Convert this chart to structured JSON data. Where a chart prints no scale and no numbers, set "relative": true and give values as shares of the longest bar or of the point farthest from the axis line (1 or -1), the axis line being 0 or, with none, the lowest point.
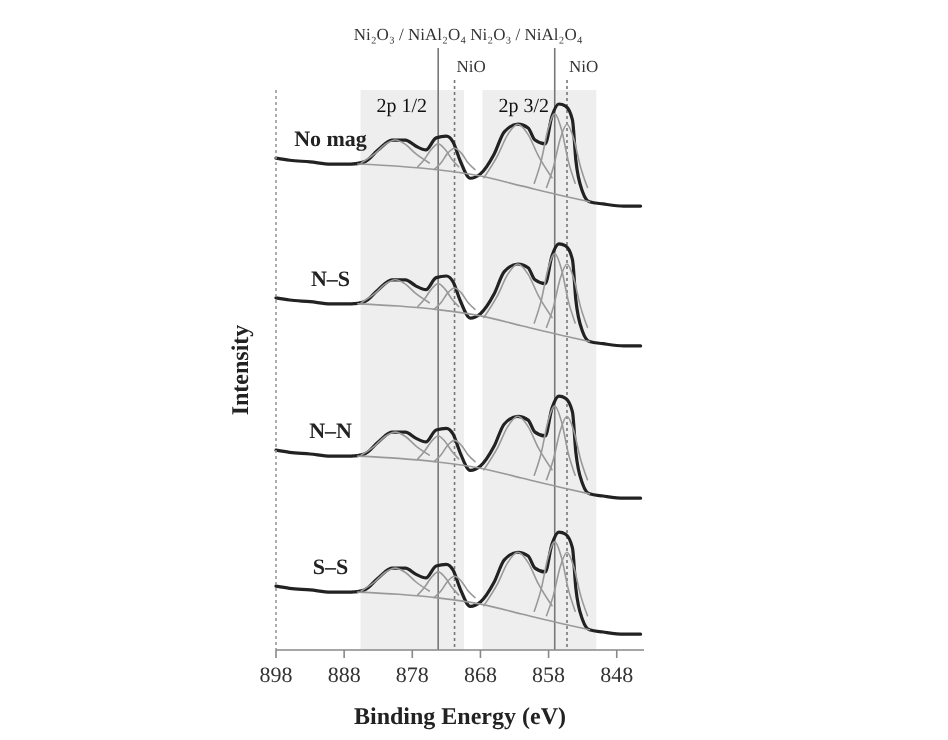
{
  "chart_data": {
    "type": "line",
    "relative": true,
    "xlabel": "Binding Energy (eV)",
    "ylabel": "Intensity",
    "xlim": [
      898,
      844
    ],
    "xticks": [
      898,
      888,
      878,
      868,
      858,
      848
    ],
    "bands": [
      {
        "axis": "x",
        "from": 885.6,
        "to": 870.4,
        "label": "2p 1/2",
        "color": "#eeeeee"
      },
      {
        "axis": "x",
        "from": 867.7,
        "to": 851,
        "label": "2p 3/2",
        "color": "#eeeeee"
      }
    ],
    "ref_lines": [
      {
        "axis": "x",
        "value": 874.2,
        "label": "Ni₂O₃ / NiAl₂O₄",
        "line_style": "solid",
        "color": "#777777"
      },
      {
        "axis": "x",
        "value": 871.8,
        "label": "NiO",
        "line_style": "dotted",
        "color": "#777777"
      },
      {
        "axis": "x",
        "value": 857.1,
        "label": "Ni₂O₃ / NiAl₂O₄",
        "line_style": "solid",
        "color": "#777777"
      },
      {
        "axis": "x",
        "value": 855.3,
        "label": "NiO",
        "line_style": "dotted",
        "color": "#777777"
      }
    ],
    "series": [
      {
        "name": "No mag",
        "color": "#222222",
        "x": [
          898,
          896,
          893,
          890,
          887,
          885,
          883,
          881,
          879,
          877.5,
          876,
          874.5,
          873,
          872,
          871,
          869.5,
          868,
          866,
          864.5,
          862.5,
          861,
          860,
          858.5,
          857.5,
          856.5,
          855.5,
          854.5,
          854,
          853,
          852,
          850,
          847,
          844.5
        ],
        "values": [
          0.901,
          0.897,
          0.894,
          0.89,
          0.89,
          0.894,
          0.916,
          0.934,
          0.934,
          0.923,
          0.916,
          0.938,
          0.941,
          0.93,
          0.897,
          0.864,
          0.872,
          0.908,
          0.949,
          0.963,
          0.956,
          0.934,
          0.927,
          0.978,
          1.0,
          0.996,
          0.971,
          0.897,
          0.839,
          0.821,
          0.817,
          0.813,
          0.813
        ]
      },
      {
        "color": "#999999",
        "x": [
          886,
          880,
          874,
          868,
          862,
          856,
          852
        ],
        "values": [
          0.89,
          0.886,
          0.879,
          0.868,
          0.85,
          0.832,
          0.821
        ]
      },
      {
        "color": "#999999",
        "x": [
          885.5,
          883.5,
          882,
          880.5,
          879,
          877.5,
          875.5
        ],
        "values": [
          0.892,
          0.909,
          0.926,
          0.934,
          0.926,
          0.909,
          0.892
        ]
      },
      {
        "color": "#999999",
        "x": [
          877.2,
          876.2,
          875.2,
          874.2,
          873.2,
          872.2,
          871.2
        ],
        "values": [
          0.885,
          0.899,
          0.917,
          0.927,
          0.917,
          0.899,
          0.885
        ]
      },
      {
        "color": "#999999",
        "x": [
          874.8,
          873.8,
          872.8,
          871.8,
          870.8,
          869.8,
          868.8
        ],
        "values": [
          0.88,
          0.892,
          0.91,
          0.919,
          0.91,
          0.892,
          0.88
        ]
      },
      {
        "color": "#999999",
        "x": [
          867.5,
          865.5,
          864,
          862.5,
          861,
          859.5,
          857.5
        ],
        "values": [
          0.865,
          0.905,
          0.944,
          0.963,
          0.944,
          0.905,
          0.865
        ]
      },
      {
        "color": "#999999",
        "x": [
          860.1,
          859.1,
          858.1,
          857.1,
          856.1,
          855.1,
          854.1
        ],
        "values": [
          0.855,
          0.895,
          0.953,
          0.982,
          0.953,
          0.895,
          0.855
        ]
      },
      {
        "color": "#999999",
        "x": [
          858.3,
          857.3,
          856.3,
          855.3,
          854.3,
          853.3,
          852.3
        ],
        "values": [
          0.847,
          0.884,
          0.936,
          0.963,
          0.936,
          0.884,
          0.847
        ]
      },
      {
        "name": "N–S",
        "color": "#222222",
        "x": [
          898,
          896,
          893,
          890,
          887,
          885,
          883,
          881,
          879,
          877.5,
          876,
          874.5,
          873,
          872,
          871,
          869.5,
          868,
          866,
          864.5,
          862.5,
          861,
          860,
          858.5,
          857.5,
          856.5,
          855.5,
          854.5,
          854,
          853,
          852,
          850,
          847,
          844.5
        ],
        "values": [
          0.645,
          0.641,
          0.638,
          0.634,
          0.634,
          0.638,
          0.66,
          0.678,
          0.678,
          0.667,
          0.66,
          0.682,
          0.685,
          0.674,
          0.641,
          0.608,
          0.616,
          0.652,
          0.693,
          0.707,
          0.7,
          0.678,
          0.671,
          0.722,
          0.744,
          0.74,
          0.715,
          0.641,
          0.583,
          0.565,
          0.561,
          0.557,
          0.557
        ]
      },
      {
        "color": "#999999",
        "x": [
          886,
          880,
          874,
          868,
          862,
          856,
          852
        ],
        "values": [
          0.634,
          0.63,
          0.623,
          0.612,
          0.594,
          0.576,
          0.565
        ]
      },
      {
        "color": "#999999",
        "x": [
          885.5,
          883.5,
          882,
          880.5,
          879,
          877.5,
          875.5
        ],
        "values": [
          0.636,
          0.653,
          0.67,
          0.678,
          0.67,
          0.653,
          0.636
        ]
      },
      {
        "color": "#999999",
        "x": [
          877.2,
          876.2,
          875.2,
          874.2,
          873.2,
          872.2,
          871.2
        ],
        "values": [
          0.629,
          0.643,
          0.661,
          0.671,
          0.661,
          0.643,
          0.629
        ]
      },
      {
        "color": "#999999",
        "x": [
          874.8,
          873.8,
          872.8,
          871.8,
          870.8,
          869.8,
          868.8
        ],
        "values": [
          0.624,
          0.636,
          0.654,
          0.663,
          0.654,
          0.636,
          0.624
        ]
      },
      {
        "color": "#999999",
        "x": [
          867.5,
          865.5,
          864,
          862.5,
          861,
          859.5,
          857.5
        ],
        "values": [
          0.609,
          0.649,
          0.688,
          0.707,
          0.688,
          0.649,
          0.609
        ]
      },
      {
        "color": "#999999",
        "x": [
          860.1,
          859.1,
          858.1,
          857.1,
          856.1,
          855.1,
          854.1
        ],
        "values": [
          0.599,
          0.639,
          0.697,
          0.726,
          0.697,
          0.639,
          0.599
        ]
      },
      {
        "color": "#999999",
        "x": [
          858.3,
          857.3,
          856.3,
          855.3,
          854.3,
          853.3,
          852.3
        ],
        "values": [
          0.591,
          0.628,
          0.68,
          0.707,
          0.68,
          0.628,
          0.591
        ]
      },
      {
        "name": "N–N",
        "color": "#222222",
        "x": [
          898,
          896,
          893,
          890,
          887,
          885,
          883,
          881,
          879,
          877.5,
          876,
          874.5,
          873,
          872,
          871,
          869.5,
          868,
          866,
          864.5,
          862.5,
          861,
          860,
          858.5,
          857.5,
          856.5,
          855.5,
          854.5,
          854,
          853,
          852,
          850,
          847,
          844.5
        ],
        "values": [
          0.366,
          0.362,
          0.359,
          0.355,
          0.355,
          0.359,
          0.381,
          0.399,
          0.399,
          0.388,
          0.381,
          0.403,
          0.406,
          0.395,
          0.362,
          0.329,
          0.337,
          0.373,
          0.414,
          0.428,
          0.421,
          0.399,
          0.392,
          0.443,
          0.465,
          0.461,
          0.436,
          0.362,
          0.304,
          0.286,
          0.282,
          0.278,
          0.278
        ]
      },
      {
        "color": "#999999",
        "x": [
          886,
          880,
          874,
          868,
          862,
          856,
          852
        ],
        "values": [
          0.355,
          0.351,
          0.344,
          0.333,
          0.315,
          0.297,
          0.286
        ]
      },
      {
        "color": "#999999",
        "x": [
          885.5,
          883.5,
          882,
          880.5,
          879,
          877.5,
          875.5
        ],
        "values": [
          0.357,
          0.374,
          0.391,
          0.399,
          0.391,
          0.374,
          0.357
        ]
      },
      {
        "color": "#999999",
        "x": [
          877.2,
          876.2,
          875.2,
          874.2,
          873.2,
          872.2,
          871.2
        ],
        "values": [
          0.35,
          0.364,
          0.382,
          0.392,
          0.382,
          0.364,
          0.35
        ]
      },
      {
        "color": "#999999",
        "x": [
          874.8,
          873.8,
          872.8,
          871.8,
          870.8,
          869.8,
          868.8
        ],
        "values": [
          0.345,
          0.357,
          0.375,
          0.384,
          0.375,
          0.357,
          0.345
        ]
      },
      {
        "color": "#999999",
        "x": [
          867.5,
          865.5,
          864,
          862.5,
          861,
          859.5,
          857.5
        ],
        "values": [
          0.33,
          0.37,
          0.409,
          0.428,
          0.409,
          0.37,
          0.33
        ]
      },
      {
        "color": "#999999",
        "x": [
          860.1,
          859.1,
          858.1,
          857.1,
          856.1,
          855.1,
          854.1
        ],
        "values": [
          0.32,
          0.36,
          0.418,
          0.447,
          0.418,
          0.36,
          0.32
        ]
      },
      {
        "color": "#999999",
        "x": [
          858.3,
          857.3,
          856.3,
          855.3,
          854.3,
          853.3,
          852.3
        ],
        "values": [
          0.312,
          0.349,
          0.401,
          0.428,
          0.401,
          0.349,
          0.312
        ]
      },
      {
        "name": "S–S",
        "color": "#222222",
        "x": [
          898,
          896,
          893,
          890,
          887,
          885,
          883,
          881,
          879,
          877.5,
          876,
          874.5,
          873,
          872,
          871,
          869.5,
          868,
          866,
          864.5,
          862.5,
          861,
          860,
          858.5,
          857.5,
          856.5,
          855.5,
          854.5,
          854,
          853,
          852,
          850,
          847,
          844.5
        ],
        "values": [
          0.117,
          0.113,
          0.11,
          0.106,
          0.106,
          0.11,
          0.132,
          0.15,
          0.15,
          0.139,
          0.132,
          0.154,
          0.157,
          0.146,
          0.113,
          0.08,
          0.088,
          0.124,
          0.165,
          0.179,
          0.172,
          0.15,
          0.143,
          0.194,
          0.216,
          0.212,
          0.187,
          0.113,
          0.055,
          0.037,
          0.033,
          0.029,
          0.029
        ]
      },
      {
        "color": "#999999",
        "x": [
          886,
          880,
          874,
          868,
          862,
          856,
          852
        ],
        "values": [
          0.106,
          0.102,
          0.095,
          0.084,
          0.066,
          0.048,
          0.037
        ]
      },
      {
        "color": "#999999",
        "x": [
          885.5,
          883.5,
          882,
          880.5,
          879,
          877.5,
          875.5
        ],
        "values": [
          0.108,
          0.125,
          0.142,
          0.15,
          0.142,
          0.125,
          0.108
        ]
      },
      {
        "color": "#999999",
        "x": [
          877.2,
          876.2,
          875.2,
          874.2,
          873.2,
          872.2,
          871.2
        ],
        "values": [
          0.101,
          0.115,
          0.133,
          0.143,
          0.133,
          0.115,
          0.101
        ]
      },
      {
        "color": "#999999",
        "x": [
          874.8,
          873.8,
          872.8,
          871.8,
          870.8,
          869.8,
          868.8
        ],
        "values": [
          0.096,
          0.108,
          0.126,
          0.135,
          0.126,
          0.108,
          0.096
        ]
      },
      {
        "color": "#999999",
        "x": [
          867.5,
          865.5,
          864,
          862.5,
          861,
          859.5,
          857.5
        ],
        "values": [
          0.081,
          0.121,
          0.16,
          0.179,
          0.16,
          0.121,
          0.081
        ]
      },
      {
        "color": "#999999",
        "x": [
          860.1,
          859.1,
          858.1,
          857.1,
          856.1,
          855.1,
          854.1
        ],
        "values": [
          0.071,
          0.111,
          0.169,
          0.198,
          0.169,
          0.111,
          0.071
        ]
      },
      {
        "color": "#999999",
        "x": [
          858.3,
          857.3,
          856.3,
          855.3,
          854.3,
          853.3,
          852.3
        ],
        "values": [
          0.063,
          0.1,
          0.152,
          0.179,
          0.152,
          0.1,
          0.063
        ]
      }
    ]
  }
}
